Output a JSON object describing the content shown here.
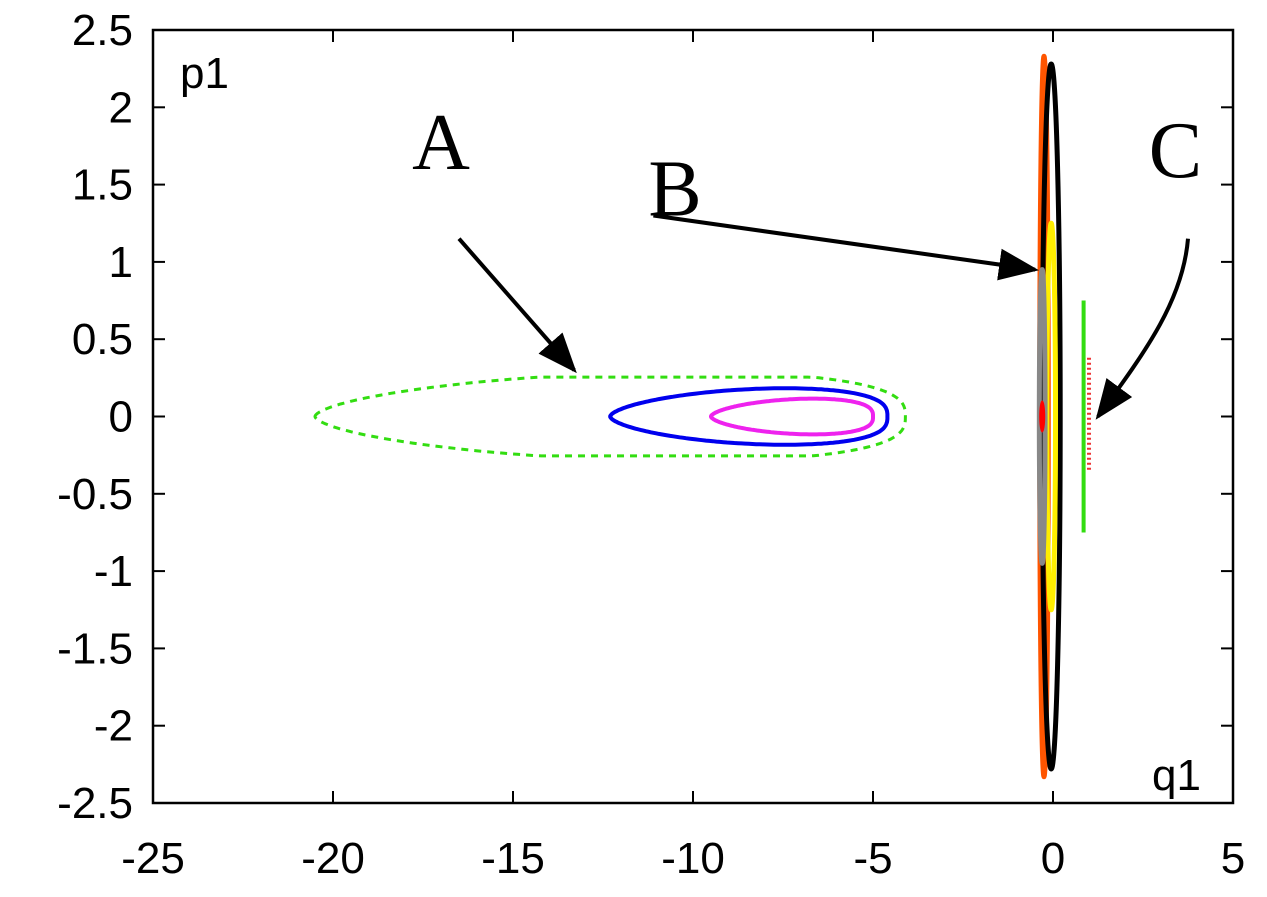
{
  "chart_data": {
    "type": "scatter",
    "title": "",
    "xlabel": "q1",
    "ylabel": "p1",
    "xlim": [
      -25,
      5
    ],
    "ylim": [
      -2.5,
      2.5
    ],
    "grid": false,
    "xticks": [
      "-25",
      "-20",
      "-15",
      "-10",
      "-5",
      "0",
      "5"
    ],
    "yticks": [
      "2.5",
      "2",
      "1.5",
      "1",
      "0.5",
      "0",
      "-0.5",
      "-1",
      "-1.5",
      "-2",
      "-2.5"
    ],
    "series": [
      {
        "name": "green-dashed-orbit",
        "color": "#33dd11",
        "style": "dashed",
        "kind": "loop",
        "q_min": -20.5,
        "q_max": -4.1,
        "q_peak": -6.5,
        "p_amp": 0.25
      },
      {
        "name": "blue-orbit",
        "color": "#0000ee",
        "style": "solid",
        "kind": "loop",
        "q_min": -12.3,
        "q_max": -4.6,
        "q_peak": -6.8,
        "p_amp": 0.18
      },
      {
        "name": "magenta-orbit",
        "color": "#ee22ee",
        "style": "solid",
        "kind": "loop",
        "q_min": -9.5,
        "q_max": -5.0,
        "q_peak": -6.9,
        "p_amp": 0.115
      },
      {
        "name": "orange-orbit",
        "color": "#ff5500",
        "style": "solid",
        "kind": "ellipse",
        "q_center": -0.25,
        "q_half": 0.12,
        "p_half": 2.33
      },
      {
        "name": "black-orbit",
        "color": "#000000",
        "style": "solid",
        "kind": "ellipse",
        "q_center": -0.05,
        "q_half": 0.25,
        "p_half": 2.28
      },
      {
        "name": "yellow-orbit",
        "color": "#ffee00",
        "style": "solid",
        "kind": "ellipse",
        "q_center": -0.05,
        "q_half": 0.12,
        "p_half": 1.25
      },
      {
        "name": "gray-orbit",
        "color": "#888888",
        "style": "solid",
        "kind": "ellipse",
        "q_center": -0.3,
        "q_half": 0.08,
        "p_half": 0.95
      },
      {
        "name": "red-center-point",
        "color": "#ff0000",
        "style": "solid",
        "kind": "ellipse",
        "q_center": -0.3,
        "q_half": 0.07,
        "p_half": 0.1
      },
      {
        "name": "green-vertical-segment",
        "color": "#33dd11",
        "style": "solid",
        "kind": "segment",
        "q": 0.85,
        "p_min": -0.75,
        "p_max": 0.75
      },
      {
        "name": "red-vertical-segment",
        "color": "#ee3333",
        "style": "dotted",
        "kind": "segment",
        "q": 1.0,
        "p_min": -0.35,
        "p_max": 0.38
      }
    ],
    "annotations": [
      {
        "label": "A",
        "text_q": -17.0,
        "text_p": 1.6,
        "arrow_from_q": -16.5,
        "arrow_from_p": 1.15,
        "arrow_to_q": -13.3,
        "arrow_to_p": 0.3
      },
      {
        "label": "B",
        "text_q": -10.5,
        "text_p": 1.3,
        "arrow_from_q": -11.1,
        "arrow_from_p": 1.3,
        "arrow_to_q": -0.5,
        "arrow_to_p": 0.95
      },
      {
        "label": "C",
        "text_q": 3.4,
        "text_p": 1.55,
        "arrow_from_q": 3.75,
        "arrow_from_p": 1.15,
        "arrow_to_q": 1.25,
        "arrow_to_p": 0.0
      }
    ]
  }
}
